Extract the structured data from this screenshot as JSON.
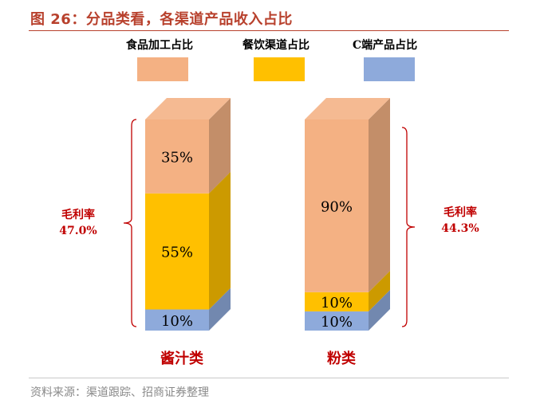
{
  "title": "图 26：分品类看，各渠道产品收入占比",
  "source": "资料来源：渠道跟踪、招商证券整理",
  "chart_data": {
    "type": "bar",
    "stacked": true,
    "categories": [
      "酱汁类",
      "粉类"
    ],
    "series": [
      {
        "name": "C端产品占比",
        "values": [
          10,
          10
        ],
        "labels": [
          "10%",
          "10%"
        ],
        "color": "#8eaadb"
      },
      {
        "name": "餐饮渠道占比",
        "values": [
          55,
          10
        ],
        "labels": [
          "55%",
          "10%"
        ],
        "color": "#ffc000"
      },
      {
        "name": "食品加工占比",
        "values": [
          35,
          90
        ],
        "labels": [
          "35%",
          "90%"
        ],
        "color": "#f4b183"
      }
    ],
    "legend_order": [
      "食品加工占比",
      "餐饮渠道占比",
      "C端产品占比"
    ],
    "legend_position": "top",
    "annotations": [
      {
        "category": "酱汁类",
        "side": "left",
        "label": "毛利率",
        "value": "47.0%"
      },
      {
        "category": "粉类",
        "side": "right",
        "label": "毛利率",
        "value": "44.3%"
      }
    ],
    "category_label_color": "#c00000",
    "annotation_color": "#c00000"
  }
}
